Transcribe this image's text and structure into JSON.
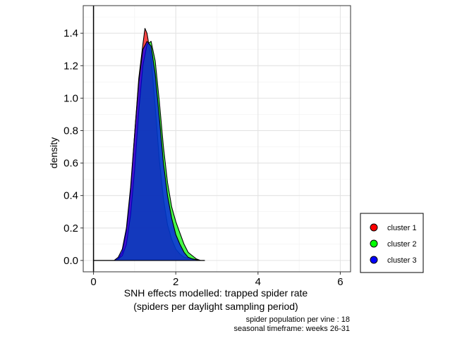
{
  "chart_data": {
    "type": "area",
    "title": "",
    "xlabel": [
      "SNH effects modelled: trapped spider rate",
      "(spiders per daylight sampling period)"
    ],
    "ylabel": "density",
    "xlim": [
      -0.25,
      6.25
    ],
    "ylim": [
      -0.07,
      1.57
    ],
    "x_ticks": [
      0,
      2,
      4,
      6
    ],
    "y_ticks": [
      0.0,
      0.2,
      0.4,
      0.6,
      0.8,
      1.0,
      1.2,
      1.4
    ],
    "x_tick_labels": [
      "0",
      "2",
      "4",
      "6"
    ],
    "y_tick_labels": [
      "0.0",
      "0.2",
      "0.4",
      "0.6",
      "0.8",
      "1.0",
      "1.2",
      "1.4"
    ],
    "grid": true,
    "vline_x": 0,
    "legend_position": "right",
    "caption": [
      "spider population per vine : 18",
      "seasonal timeframe: weeks 26-31"
    ],
    "series": [
      {
        "name": "cluster 1",
        "color": "#FF0000",
        "points": [
          [
            0.0,
            0
          ],
          [
            0.5,
            0
          ],
          [
            0.6,
            0.01
          ],
          [
            0.7,
            0.05
          ],
          [
            0.8,
            0.18
          ],
          [
            0.9,
            0.42
          ],
          [
            1.0,
            0.78
          ],
          [
            1.1,
            1.12
          ],
          [
            1.2,
            1.33
          ],
          [
            1.25,
            1.43
          ],
          [
            1.3,
            1.4
          ],
          [
            1.4,
            1.25
          ],
          [
            1.5,
            0.95
          ],
          [
            1.6,
            0.62
          ],
          [
            1.7,
            0.38
          ],
          [
            1.8,
            0.22
          ],
          [
            1.9,
            0.13
          ],
          [
            2.0,
            0.07
          ],
          [
            2.1,
            0.04
          ],
          [
            2.2,
            0.02
          ],
          [
            2.4,
            0.01
          ],
          [
            2.6,
            0
          ],
          [
            2.7,
            0
          ]
        ]
      },
      {
        "name": "cluster 2",
        "color": "#00FF00",
        "points": [
          [
            0.0,
            0
          ],
          [
            0.5,
            0
          ],
          [
            0.6,
            0.01
          ],
          [
            0.7,
            0.03
          ],
          [
            0.8,
            0.1
          ],
          [
            0.9,
            0.28
          ],
          [
            1.0,
            0.56
          ],
          [
            1.1,
            0.92
          ],
          [
            1.2,
            1.2
          ],
          [
            1.3,
            1.33
          ],
          [
            1.4,
            1.35
          ],
          [
            1.5,
            1.23
          ],
          [
            1.6,
            0.98
          ],
          [
            1.7,
            0.7
          ],
          [
            1.8,
            0.48
          ],
          [
            1.9,
            0.33
          ],
          [
            2.0,
            0.24
          ],
          [
            2.1,
            0.17
          ],
          [
            2.2,
            0.1
          ],
          [
            2.3,
            0.05
          ],
          [
            2.4,
            0.03
          ],
          [
            2.5,
            0.01
          ],
          [
            2.6,
            0
          ],
          [
            2.7,
            0
          ]
        ]
      },
      {
        "name": "cluster 3",
        "color": "#0000FF",
        "points": [
          [
            0.0,
            0
          ],
          [
            0.5,
            0
          ],
          [
            0.6,
            0.02
          ],
          [
            0.7,
            0.07
          ],
          [
            0.8,
            0.2
          ],
          [
            0.9,
            0.45
          ],
          [
            1.0,
            0.78
          ],
          [
            1.1,
            1.1
          ],
          [
            1.2,
            1.3
          ],
          [
            1.3,
            1.35
          ],
          [
            1.4,
            1.32
          ],
          [
            1.5,
            1.15
          ],
          [
            1.6,
            0.88
          ],
          [
            1.7,
            0.6
          ],
          [
            1.8,
            0.4
          ],
          [
            1.9,
            0.26
          ],
          [
            2.0,
            0.16
          ],
          [
            2.1,
            0.1
          ],
          [
            2.2,
            0.05
          ],
          [
            2.3,
            0.02
          ],
          [
            2.4,
            0.01
          ],
          [
            2.6,
            0
          ],
          [
            2.7,
            0
          ]
        ]
      }
    ]
  },
  "legend": {
    "items": [
      {
        "label": "cluster 1",
        "color": "#FF0000"
      },
      {
        "label": "cluster 2",
        "color": "#00FF00"
      },
      {
        "label": "cluster 3",
        "color": "#0000FF"
      }
    ]
  }
}
